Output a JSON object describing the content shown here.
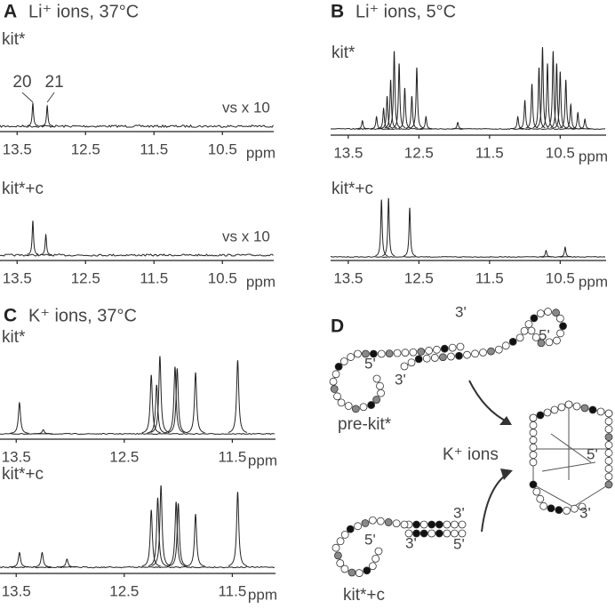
{
  "chart_data": [
    {
      "type": "spectrum",
      "panel": "A",
      "title": "Li⁺ ions, 37°C",
      "label": "kit*",
      "annotation": "vs x 10",
      "peak_labels": [
        "20",
        "21"
      ],
      "xlabel": "ppm",
      "xlim": [
        13.75,
        9.75
      ],
      "xticks": [
        13.5,
        12.5,
        11.5,
        10.5
      ],
      "ylim": [
        0,
        100
      ],
      "peaks": {
        "x": [
          13.27,
          13.06
        ],
        "values": [
          28,
          25
        ]
      }
    },
    {
      "type": "spectrum",
      "label": "kit*+c",
      "annotation": "vs x 10",
      "xlabel": "ppm",
      "xlim": [
        13.75,
        9.75
      ],
      "xticks": [
        13.5,
        12.5,
        11.5,
        10.5
      ],
      "ylim": [
        0,
        100
      ],
      "peaks": {
        "x": [
          13.27,
          13.08
        ],
        "values": [
          42,
          25
        ]
      }
    },
    {
      "type": "spectrum",
      "panel": "B",
      "title": "Li⁺ ions, 5°C",
      "label": "kit*",
      "xlabel": "ppm",
      "xlim": [
        13.75,
        9.85
      ],
      "xticks": [
        13.5,
        12.5,
        11.5,
        10.5
      ],
      "ylim": [
        0,
        100
      ],
      "peaks": {
        "x": [
          13.3,
          13.1,
          13.0,
          12.95,
          12.9,
          12.85,
          12.78,
          12.7,
          12.6,
          12.53,
          12.4,
          11.95,
          11.1,
          11.0,
          10.9,
          10.8,
          10.75,
          10.68,
          10.6,
          10.55,
          10.5,
          10.42,
          10.35,
          10.25,
          10.15
        ],
        "values": [
          10,
          15,
          25,
          40,
          60,
          95,
          80,
          50,
          40,
          75,
          15,
          8,
          15,
          35,
          55,
          75,
          100,
          80,
          95,
          80,
          70,
          60,
          30,
          20,
          12
        ]
      }
    },
    {
      "type": "spectrum",
      "label": "kit*+c",
      "xlabel": "ppm",
      "xlim": [
        13.75,
        9.85
      ],
      "xticks": [
        13.5,
        12.5,
        11.5,
        10.5
      ],
      "ylim": [
        0,
        100
      ],
      "peaks": {
        "x": [
          13.03,
          12.93,
          12.63,
          10.7,
          10.43
        ],
        "values": [
          70,
          72,
          60,
          8,
          12
        ]
      }
    },
    {
      "type": "spectrum",
      "panel": "C",
      "title": "K⁺ ions, 37°C",
      "label": "kit*",
      "xlabel": "ppm",
      "xlim": [
        13.65,
        11.1
      ],
      "xticks": [
        13.5,
        12.5,
        11.5
      ],
      "ylim": [
        0,
        100
      ],
      "peaks": {
        "x": [
          13.47,
          13.25,
          12.25,
          12.2,
          12.17,
          12.03,
          12.01,
          11.84,
          11.45
        ],
        "values": [
          38,
          5,
          72,
          60,
          95,
          82,
          80,
          75,
          90
        ]
      }
    },
    {
      "type": "spectrum",
      "label": "kit*+c",
      "xlabel": "ppm",
      "xlim": [
        13.65,
        11.1
      ],
      "xticks": [
        13.5,
        12.5,
        11.5
      ],
      "ylim": [
        0,
        100
      ],
      "peaks": {
        "x": [
          13.47,
          13.26,
          13.03,
          12.25,
          12.19,
          12.16,
          12.02,
          12.0,
          11.84,
          11.45
        ],
        "values": [
          18,
          18,
          10,
          70,
          85,
          100,
          80,
          78,
          65,
          92
        ]
      }
    }
  ],
  "panel_d": {
    "panel": "D",
    "labels": [
      "3'",
      "5'",
      "5'",
      "3'",
      "pre-kit*",
      "K⁺ ions",
      "5'",
      "3'",
      "3'",
      "3'",
      "5'",
      "5'",
      "kit*+c"
    ]
  }
}
